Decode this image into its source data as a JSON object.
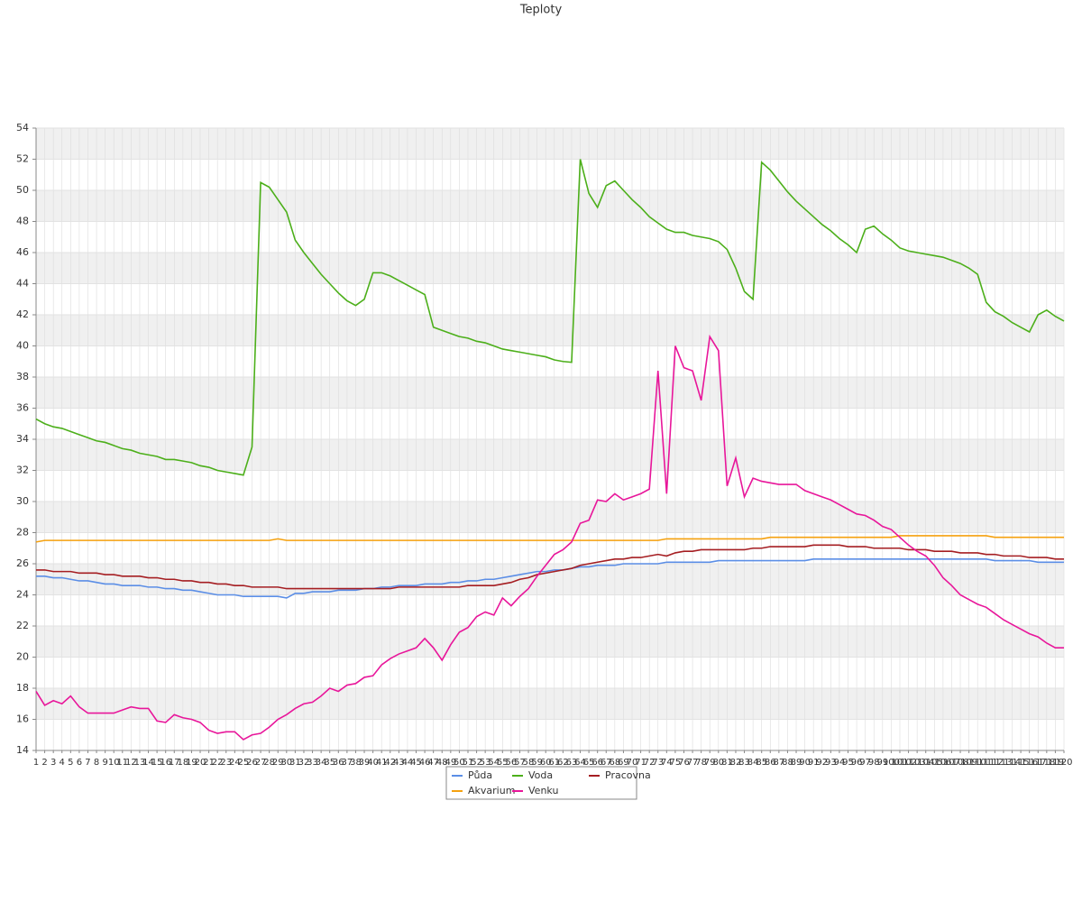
{
  "chart_data": {
    "type": "line",
    "title": "Teploty",
    "categories": [
      1,
      2,
      3,
      4,
      5,
      6,
      7,
      8,
      9,
      10,
      11,
      12,
      13,
      14,
      15,
      16,
      17,
      18,
      19,
      20,
      21,
      22,
      23,
      24,
      25,
      26,
      27,
      28,
      29,
      30,
      31,
      32,
      33,
      34,
      35,
      36,
      37,
      38,
      39,
      40,
      41,
      42,
      43,
      44,
      45,
      46,
      47,
      48,
      49,
      50,
      51,
      52,
      53,
      54,
      55,
      56,
      57,
      58,
      59,
      60,
      61,
      62,
      63,
      64,
      65,
      66,
      67,
      68,
      69,
      70,
      71,
      72,
      73,
      74,
      75,
      76,
      77,
      78,
      79,
      80,
      81,
      82,
      83,
      84,
      85,
      86,
      87,
      88,
      89,
      90,
      91,
      92,
      93,
      94,
      95,
      96,
      97,
      98,
      99,
      100,
      101,
      102,
      103,
      104,
      105,
      106,
      107,
      108,
      109,
      110,
      111,
      112,
      113,
      114,
      115,
      116,
      117,
      118,
      119,
      120
    ],
    "series": [
      {
        "name": "Půda",
        "color": "#5b8ee6",
        "values": [
          25.2,
          25.2,
          25.1,
          25.1,
          25.0,
          24.9,
          24.9,
          24.8,
          24.7,
          24.7,
          24.6,
          24.6,
          24.6,
          24.5,
          24.5,
          24.4,
          24.4,
          24.3,
          24.3,
          24.2,
          24.1,
          24.0,
          24.0,
          24.0,
          23.9,
          23.9,
          23.9,
          23.9,
          23.9,
          23.8,
          24.1,
          24.1,
          24.2,
          24.2,
          24.2,
          24.3,
          24.3,
          24.3,
          24.4,
          24.4,
          24.5,
          24.5,
          24.6,
          24.6,
          24.6,
          24.7,
          24.7,
          24.7,
          24.8,
          24.8,
          24.9,
          24.9,
          25.0,
          25.0,
          25.1,
          25.2,
          25.3,
          25.4,
          25.5,
          25.5,
          25.6,
          25.6,
          25.7,
          25.8,
          25.8,
          25.9,
          25.9,
          25.9,
          26.0,
          26.0,
          26.0,
          26.0,
          26.0,
          26.1,
          26.1,
          26.1,
          26.1,
          26.1,
          26.1,
          26.2,
          26.2,
          26.2,
          26.2,
          26.2,
          26.2,
          26.2,
          26.2,
          26.2,
          26.2,
          26.2,
          26.3,
          26.3,
          26.3,
          26.3,
          26.3,
          26.3,
          26.3,
          26.3,
          26.3,
          26.3,
          26.3,
          26.3,
          26.3,
          26.3,
          26.3,
          26.3,
          26.3,
          26.3,
          26.3,
          26.3,
          26.3,
          26.2,
          26.2,
          26.2,
          26.2,
          26.2,
          26.1,
          26.1,
          26.1,
          26.1
        ]
      },
      {
        "name": "Voda",
        "color": "#4caf1a",
        "values": [
          35.3,
          35.0,
          34.8,
          34.7,
          34.5,
          34.3,
          34.1,
          33.9,
          33.8,
          33.6,
          33.4,
          33.3,
          33.1,
          33.0,
          32.9,
          32.7,
          32.7,
          32.6,
          32.5,
          32.3,
          32.2,
          32.0,
          31.9,
          31.8,
          31.7,
          33.5,
          50.5,
          50.2,
          49.4,
          48.6,
          46.8,
          46.0,
          45.3,
          44.6,
          44.0,
          43.4,
          42.9,
          42.6,
          43.0,
          44.7,
          44.7,
          44.5,
          44.2,
          43.9,
          43.6,
          43.3,
          41.2,
          41.0,
          40.8,
          40.6,
          40.5,
          40.3,
          40.2,
          40.0,
          39.8,
          39.7,
          39.6,
          39.5,
          39.4,
          39.3,
          39.1,
          39.0,
          38.95,
          52.0,
          49.8,
          48.9,
          50.3,
          50.6,
          50.0,
          49.4,
          48.9,
          48.3,
          47.9,
          47.5,
          47.3,
          47.3,
          47.1,
          47.0,
          46.9,
          46.7,
          46.2,
          45.0,
          43.5,
          43.0,
          51.8,
          51.3,
          50.6,
          49.9,
          49.3,
          48.8,
          48.3,
          47.8,
          47.4,
          46.9,
          46.5,
          46.0,
          47.5,
          47.7,
          47.2,
          46.8,
          46.3,
          46.1,
          46.0,
          45.9,
          45.8,
          45.7,
          45.5,
          45.3,
          45.0,
          44.6,
          42.8,
          42.2,
          41.9,
          41.5,
          41.2,
          40.9,
          42.0,
          42.3,
          41.9,
          41.6
        ]
      },
      {
        "name": "Pracovna",
        "color": "#a51e22",
        "values": [
          25.6,
          25.6,
          25.5,
          25.5,
          25.5,
          25.4,
          25.4,
          25.4,
          25.3,
          25.3,
          25.2,
          25.2,
          25.2,
          25.1,
          25.1,
          25.0,
          25.0,
          24.9,
          24.9,
          24.8,
          24.8,
          24.7,
          24.7,
          24.6,
          24.6,
          24.5,
          24.5,
          24.5,
          24.5,
          24.4,
          24.4,
          24.4,
          24.4,
          24.4,
          24.4,
          24.4,
          24.4,
          24.4,
          24.4,
          24.4,
          24.4,
          24.4,
          24.5,
          24.5,
          24.5,
          24.5,
          24.5,
          24.5,
          24.5,
          24.5,
          24.6,
          24.6,
          24.6,
          24.6,
          24.7,
          24.8,
          25.0,
          25.1,
          25.3,
          25.4,
          25.5,
          25.6,
          25.7,
          25.9,
          26.0,
          26.1,
          26.2,
          26.3,
          26.3,
          26.4,
          26.4,
          26.5,
          26.6,
          26.5,
          26.7,
          26.8,
          26.8,
          26.9,
          26.9,
          26.9,
          26.9,
          26.9,
          26.9,
          27.0,
          27.0,
          27.1,
          27.1,
          27.1,
          27.1,
          27.1,
          27.2,
          27.2,
          27.2,
          27.2,
          27.1,
          27.1,
          27.1,
          27.0,
          27.0,
          27.0,
          27.0,
          26.9,
          26.9,
          26.9,
          26.8,
          26.8,
          26.8,
          26.7,
          26.7,
          26.7,
          26.6,
          26.6,
          26.5,
          26.5,
          26.5,
          26.4,
          26.4,
          26.4,
          26.3,
          26.3
        ]
      },
      {
        "name": "Akvarium",
        "color": "#f5a10f",
        "values": [
          27.4,
          27.5,
          27.5,
          27.5,
          27.5,
          27.5,
          27.5,
          27.5,
          27.5,
          27.5,
          27.5,
          27.5,
          27.5,
          27.5,
          27.5,
          27.5,
          27.5,
          27.5,
          27.5,
          27.5,
          27.5,
          27.5,
          27.5,
          27.5,
          27.5,
          27.5,
          27.5,
          27.5,
          27.6,
          27.5,
          27.5,
          27.5,
          27.5,
          27.5,
          27.5,
          27.5,
          27.5,
          27.5,
          27.5,
          27.5,
          27.5,
          27.5,
          27.5,
          27.5,
          27.5,
          27.5,
          27.5,
          27.5,
          27.5,
          27.5,
          27.5,
          27.5,
          27.5,
          27.5,
          27.5,
          27.5,
          27.5,
          27.5,
          27.5,
          27.5,
          27.5,
          27.5,
          27.5,
          27.5,
          27.5,
          27.5,
          27.5,
          27.5,
          27.5,
          27.5,
          27.5,
          27.5,
          27.5,
          27.6,
          27.6,
          27.6,
          27.6,
          27.6,
          27.6,
          27.6,
          27.6,
          27.6,
          27.6,
          27.6,
          27.6,
          27.7,
          27.7,
          27.7,
          27.7,
          27.7,
          27.7,
          27.7,
          27.7,
          27.7,
          27.7,
          27.7,
          27.7,
          27.7,
          27.7,
          27.7,
          27.8,
          27.8,
          27.8,
          27.8,
          27.8,
          27.8,
          27.8,
          27.8,
          27.8,
          27.8,
          27.8,
          27.7,
          27.7,
          27.7,
          27.7,
          27.7,
          27.7,
          27.7,
          27.7,
          27.7
        ]
      },
      {
        "name": "Venku",
        "color": "#e8169a",
        "values": [
          17.8,
          16.9,
          17.2,
          17.0,
          17.5,
          16.8,
          16.4,
          16.4,
          16.4,
          16.4,
          16.6,
          16.8,
          16.7,
          16.7,
          15.9,
          15.8,
          16.3,
          16.1,
          16.0,
          15.8,
          15.3,
          15.1,
          15.2,
          15.2,
          14.7,
          15.0,
          15.1,
          15.5,
          16.0,
          16.3,
          16.7,
          17.0,
          17.1,
          17.5,
          18.0,
          17.8,
          18.2,
          18.3,
          18.7,
          18.8,
          19.5,
          19.9,
          20.2,
          20.4,
          20.6,
          21.2,
          20.6,
          19.8,
          20.8,
          21.6,
          21.9,
          22.6,
          22.9,
          22.7,
          23.8,
          23.3,
          23.9,
          24.4,
          25.2,
          25.9,
          26.6,
          26.9,
          27.4,
          28.6,
          28.8,
          30.1,
          30.0,
          30.5,
          30.1,
          30.3,
          30.5,
          30.8,
          38.4,
          30.5,
          40.0,
          38.6,
          38.4,
          36.5,
          40.6,
          39.7,
          31.0,
          32.8,
          30.3,
          31.5,
          31.3,
          31.2,
          31.1,
          31.1,
          31.1,
          30.7,
          30.5,
          30.3,
          30.1,
          29.8,
          29.5,
          29.2,
          29.1,
          28.8,
          28.4,
          28.2,
          27.7,
          27.2,
          26.8,
          26.5,
          25.9,
          25.1,
          24.6,
          24.0,
          23.7,
          23.4,
          23.2,
          22.8,
          22.4,
          22.1,
          21.8,
          21.5,
          21.3,
          20.9,
          20.6,
          20.6
        ]
      }
    ],
    "ylim": [
      14,
      54
    ],
    "yticks": [
      14,
      16,
      18,
      20,
      22,
      24,
      26,
      28,
      30,
      32,
      34,
      36,
      38,
      40,
      42,
      44,
      46,
      48,
      50,
      52,
      54
    ],
    "grid": true,
    "legend": "bottom"
  }
}
